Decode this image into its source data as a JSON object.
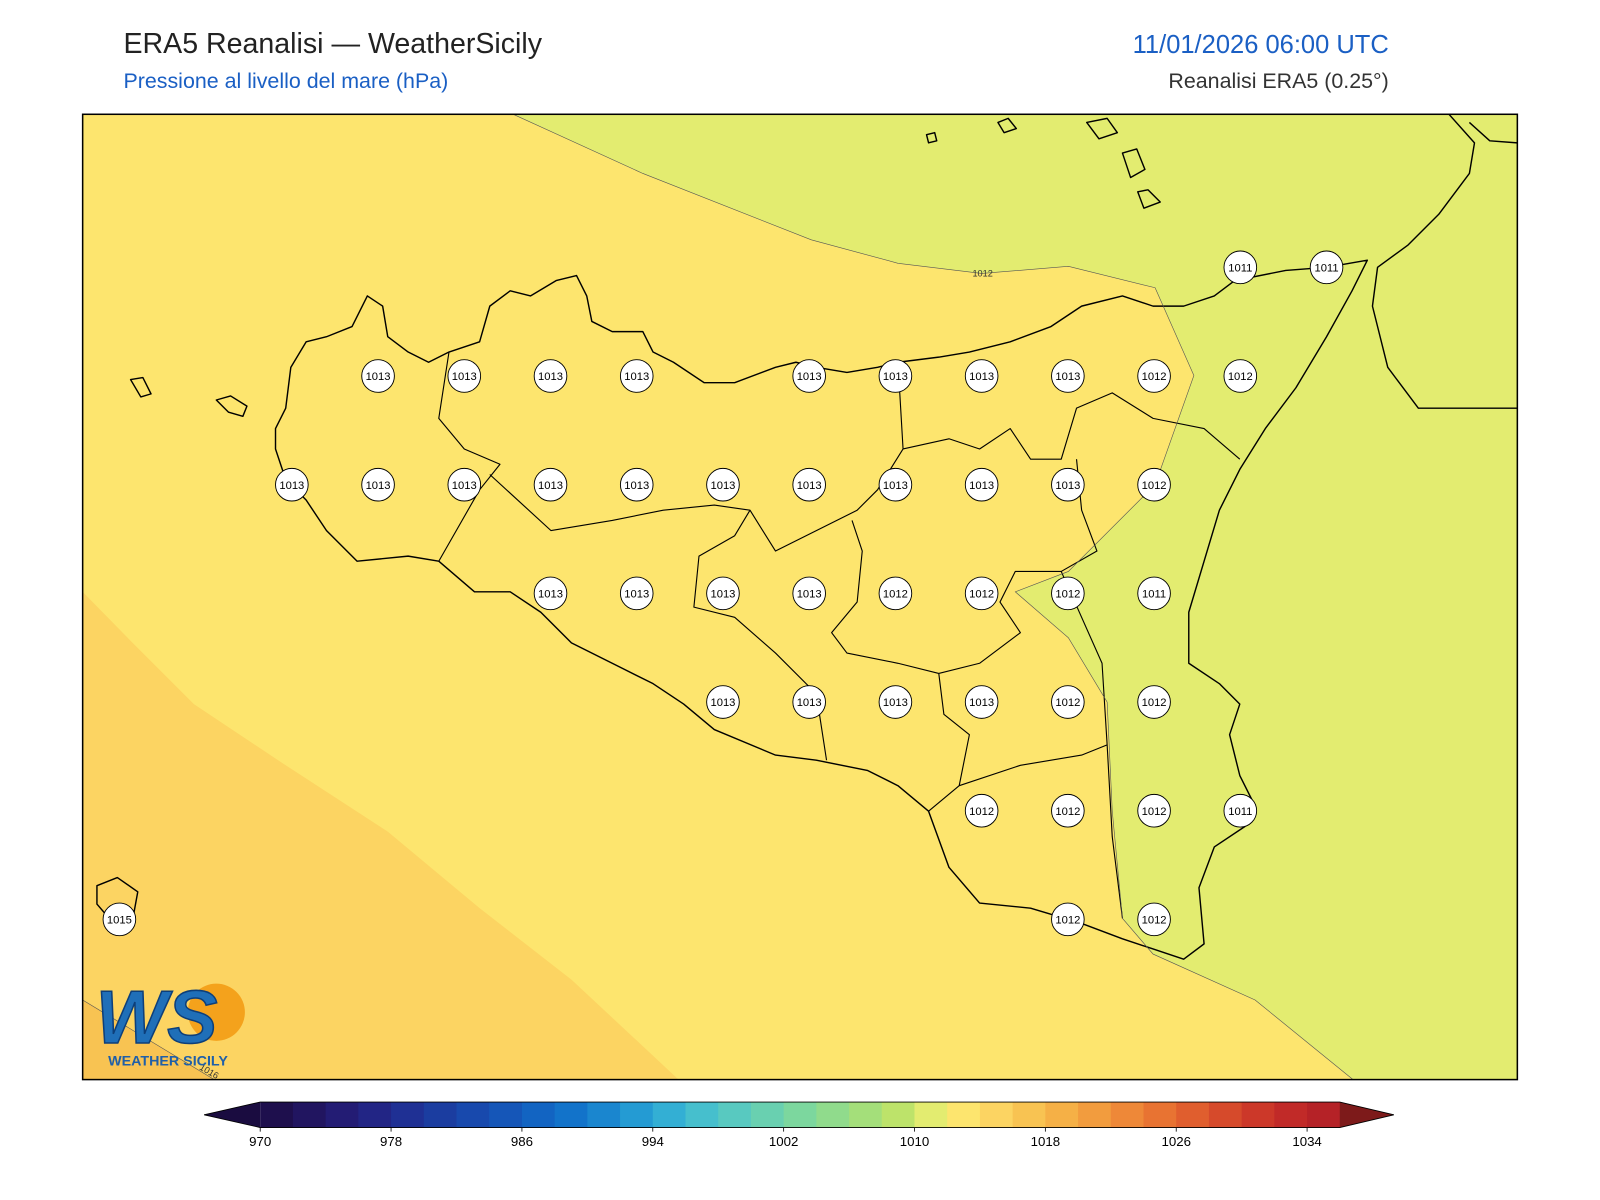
{
  "header": {
    "title": "ERA5 Reanalisi — WeatherSicily",
    "subtitle": "Pressione al livello del mare (hPa)",
    "datetime": "11/01/2026 06:00 UTC",
    "source": "Reanalisi ERA5 (0.25°)"
  },
  "fields": {
    "levels": [
      1010,
      1012,
      1014,
      1016
    ]
  },
  "contour_labels": [
    1012,
    1016
  ],
  "stations": {
    "values": [
      1011,
      1011,
      1013,
      1013,
      1013,
      1013,
      1013,
      1013,
      1013,
      1013,
      1012,
      1012,
      1013,
      1013,
      1013,
      1013,
      1013,
      1013,
      1013,
      1013,
      1013,
      1013,
      1012,
      1013,
      1013,
      1013,
      1013,
      1012,
      1012,
      1012,
      1011,
      1013,
      1013,
      1013,
      1013,
      1012,
      1012,
      1012,
      1012,
      1012,
      1011,
      1015,
      1012,
      1012
    ]
  },
  "colorbar": {
    "lim": [
      970,
      1036
    ],
    "step": 2,
    "ticks": [
      970,
      978,
      986,
      994,
      1002,
      1010,
      1018,
      1026,
      1034
    ],
    "colors": [
      "#1e0f4d",
      "#211560",
      "#231c74",
      "#222585",
      "#1f3094",
      "#1b3da0",
      "#1849ad",
      "#1556b8",
      "#1264c2",
      "#1273ca",
      "#1a86cf",
      "#249bd3",
      "#33afd4",
      "#46bfcd",
      "#58c9c0",
      "#69d0b0",
      "#7cd79e",
      "#90db8c",
      "#a4df7a",
      "#bde36a",
      "#e3ec70",
      "#fde56e",
      "#fcd462",
      "#f8c352",
      "#f5b046",
      "#f29c3e",
      "#ee8838",
      "#e87332",
      "#e05e2e",
      "#d64a2b",
      "#cc3829",
      "#c12a28",
      "#b52227"
    ],
    "under_color": "#1a0c40",
    "over_color": "#7d1a1a"
  },
  "logo": {
    "mark": "WS",
    "text": "WEATHER SICILY"
  }
}
